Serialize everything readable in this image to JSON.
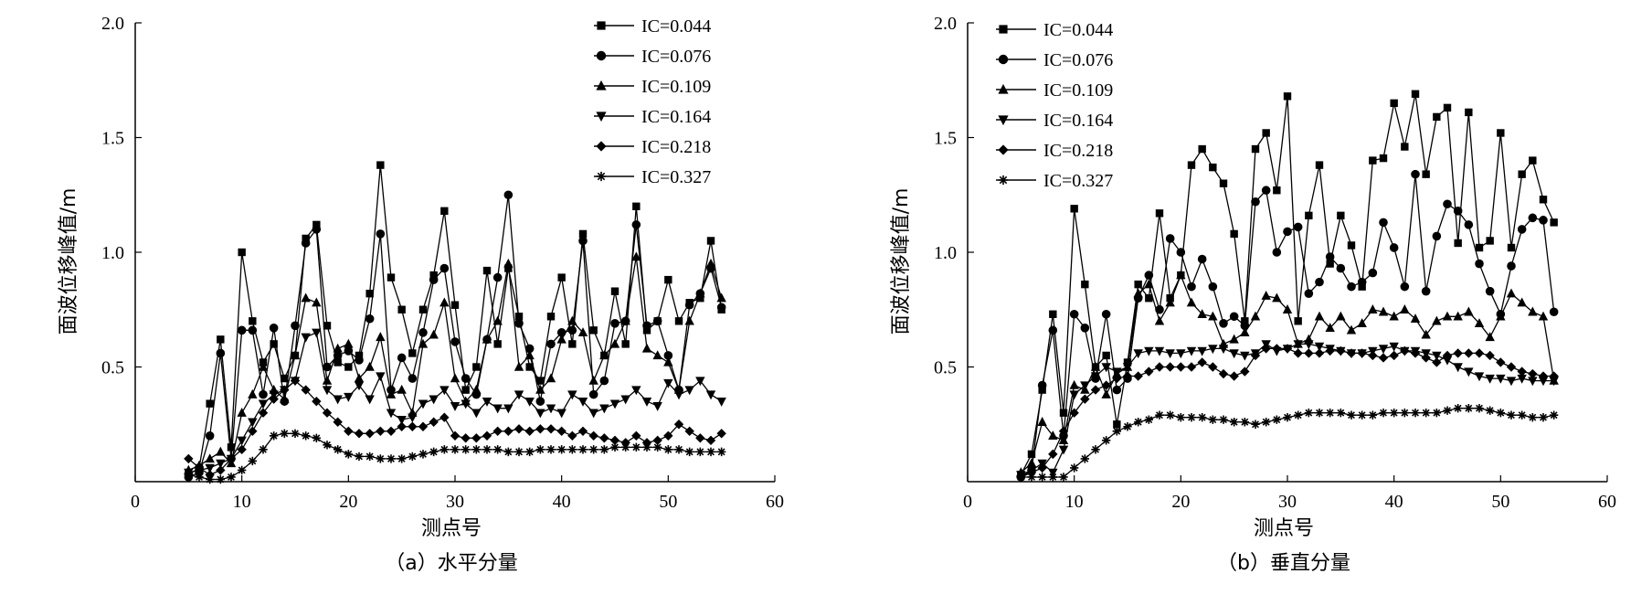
{
  "chart_data": [
    {
      "type": "line",
      "caption": "（a）水平分量",
      "xlabel": "测点号",
      "ylabel": "面波位移峰值/m",
      "xlim": [
        0,
        60
      ],
      "ylim": [
        0,
        2.0
      ],
      "xticks": [
        0,
        10,
        20,
        30,
        40,
        50,
        60
      ],
      "xtick_labels": [
        "0",
        "10",
        "20",
        "30",
        "40",
        "50",
        "60"
      ],
      "yticks": [
        0.5,
        1.0,
        1.5,
        2.0
      ],
      "ytick_labels": [
        "0.5",
        "1.0",
        "1.5",
        "2.0"
      ],
      "grid": false,
      "legend_position": "top-right",
      "x": [
        5,
        6,
        7,
        8,
        9,
        10,
        11,
        12,
        13,
        14,
        15,
        16,
        17,
        18,
        19,
        20,
        21,
        22,
        23,
        24,
        25,
        26,
        27,
        28,
        29,
        30,
        31,
        32,
        33,
        34,
        35,
        36,
        37,
        38,
        39,
        40,
        41,
        42,
        43,
        44,
        45,
        46,
        47,
        48,
        49,
        50,
        51,
        52,
        53,
        54,
        55
      ],
      "series": [
        {
          "name": "IC=0.044",
          "marker": "square",
          "values": [
            0.03,
            0.06,
            0.34,
            0.62,
            0.15,
            1.0,
            0.7,
            0.52,
            0.6,
            0.45,
            0.55,
            1.06,
            1.12,
            0.68,
            0.52,
            0.5,
            0.55,
            0.82,
            1.38,
            0.89,
            0.75,
            0.56,
            0.75,
            0.9,
            1.18,
            0.77,
            0.4,
            0.5,
            0.92,
            0.6,
            0.93,
            0.72,
            0.5,
            0.44,
            0.72,
            0.89,
            0.6,
            1.08,
            0.66,
            0.55,
            0.83,
            0.6,
            1.2,
            0.66,
            0.7,
            0.88,
            0.7,
            0.78,
            0.8,
            1.05,
            0.75
          ]
        },
        {
          "name": "IC=0.076",
          "marker": "circle",
          "values": [
            0.02,
            0.04,
            0.2,
            0.56,
            0.1,
            0.66,
            0.66,
            0.38,
            0.67,
            0.35,
            0.68,
            1.04,
            1.1,
            0.5,
            0.55,
            0.57,
            0.53,
            0.71,
            1.08,
            0.4,
            0.54,
            0.45,
            0.65,
            0.88,
            0.93,
            0.61,
            0.45,
            0.38,
            0.62,
            0.89,
            1.25,
            0.69,
            0.58,
            0.35,
            0.6,
            0.65,
            0.66,
            1.05,
            0.38,
            0.44,
            0.69,
            0.7,
            1.12,
            0.68,
            0.7,
            0.55,
            0.4,
            0.77,
            0.82,
            0.93,
            0.76
          ]
        },
        {
          "name": "IC=0.109",
          "marker": "triangle-up",
          "values": [
            0.05,
            0.07,
            0.1,
            0.13,
            0.08,
            0.3,
            0.38,
            0.5,
            0.4,
            0.36,
            0.55,
            0.8,
            0.78,
            0.44,
            0.58,
            0.6,
            0.45,
            0.5,
            0.63,
            0.38,
            0.4,
            0.3,
            0.6,
            0.64,
            0.78,
            0.45,
            0.35,
            0.4,
            0.62,
            0.7,
            0.95,
            0.5,
            0.55,
            0.4,
            0.45,
            0.62,
            0.7,
            0.65,
            0.44,
            0.55,
            0.6,
            0.7,
            0.98,
            0.58,
            0.55,
            0.52,
            0.4,
            0.7,
            0.82,
            0.95,
            0.8
          ]
        },
        {
          "name": "IC=0.164",
          "marker": "triangle-down",
          "values": [
            0.04,
            0.05,
            0.06,
            0.08,
            0.1,
            0.18,
            0.26,
            0.34,
            0.38,
            0.4,
            0.44,
            0.63,
            0.65,
            0.4,
            0.36,
            0.37,
            0.42,
            0.36,
            0.46,
            0.3,
            0.27,
            0.28,
            0.34,
            0.36,
            0.4,
            0.33,
            0.34,
            0.3,
            0.35,
            0.32,
            0.32,
            0.38,
            0.35,
            0.3,
            0.32,
            0.3,
            0.38,
            0.35,
            0.3,
            0.32,
            0.34,
            0.36,
            0.4,
            0.35,
            0.33,
            0.43,
            0.38,
            0.4,
            0.44,
            0.38,
            0.35
          ]
        },
        {
          "name": "IC=0.218",
          "marker": "diamond",
          "values": [
            0.1,
            0.06,
            0.03,
            0.05,
            0.1,
            0.14,
            0.22,
            0.3,
            0.36,
            0.4,
            0.44,
            0.4,
            0.35,
            0.3,
            0.26,
            0.22,
            0.21,
            0.21,
            0.22,
            0.22,
            0.24,
            0.24,
            0.24,
            0.26,
            0.28,
            0.2,
            0.19,
            0.19,
            0.2,
            0.22,
            0.22,
            0.23,
            0.22,
            0.23,
            0.23,
            0.22,
            0.2,
            0.22,
            0.2,
            0.19,
            0.18,
            0.17,
            0.2,
            0.17,
            0.18,
            0.2,
            0.25,
            0.22,
            0.19,
            0.18,
            0.21
          ]
        },
        {
          "name": "IC=0.327",
          "marker": "asterisk",
          "values": [
            0.03,
            0.02,
            0.01,
            0.01,
            0.02,
            0.05,
            0.09,
            0.14,
            0.2,
            0.21,
            0.21,
            0.2,
            0.19,
            0.16,
            0.14,
            0.12,
            0.11,
            0.11,
            0.1,
            0.1,
            0.1,
            0.11,
            0.12,
            0.13,
            0.14,
            0.14,
            0.14,
            0.14,
            0.14,
            0.14,
            0.13,
            0.13,
            0.13,
            0.14,
            0.14,
            0.14,
            0.14,
            0.14,
            0.14,
            0.14,
            0.15,
            0.15,
            0.15,
            0.15,
            0.15,
            0.14,
            0.14,
            0.13,
            0.13,
            0.13,
            0.13
          ]
        }
      ]
    },
    {
      "type": "line",
      "caption": "（b）垂直分量",
      "xlabel": "测点号",
      "ylabel": "面波位移峰值/m",
      "xlim": [
        0,
        60
      ],
      "ylim": [
        0,
        2.0
      ],
      "xticks": [
        0,
        10,
        20,
        30,
        40,
        50,
        60
      ],
      "xtick_labels": [
        "0",
        "10",
        "20",
        "30",
        "40",
        "50",
        "60"
      ],
      "yticks": [
        0.5,
        1.0,
        1.5,
        2.0
      ],
      "ytick_labels": [
        "0.5",
        "1.0",
        "1.5",
        "2.0"
      ],
      "grid": false,
      "legend_position": "top-left",
      "x": [
        5,
        6,
        7,
        8,
        9,
        10,
        11,
        12,
        13,
        14,
        15,
        16,
        17,
        18,
        19,
        20,
        21,
        22,
        23,
        24,
        25,
        26,
        27,
        28,
        29,
        30,
        31,
        32,
        33,
        34,
        35,
        36,
        37,
        38,
        39,
        40,
        41,
        42,
        43,
        44,
        45,
        46,
        47,
        48,
        49,
        50,
        51,
        52,
        53,
        54,
        55
      ],
      "series": [
        {
          "name": "IC=0.044",
          "marker": "square",
          "values": [
            0.03,
            0.12,
            0.4,
            0.73,
            0.3,
            1.19,
            0.86,
            0.5,
            0.55,
            0.25,
            0.52,
            0.86,
            0.8,
            1.17,
            0.8,
            0.9,
            1.38,
            1.45,
            1.37,
            1.3,
            1.08,
            0.7,
            1.45,
            1.52,
            1.27,
            1.68,
            0.7,
            1.16,
            1.38,
            0.95,
            1.16,
            1.03,
            0.85,
            1.4,
            1.41,
            1.65,
            1.46,
            1.69,
            1.34,
            1.59,
            1.63,
            1.04,
            1.61,
            1.02,
            1.05,
            1.52,
            1.02,
            1.34,
            1.4,
            1.23,
            1.13
          ]
        },
        {
          "name": "IC=0.076",
          "marker": "circle",
          "values": [
            0.02,
            0.05,
            0.42,
            0.66,
            0.2,
            0.73,
            0.67,
            0.45,
            0.73,
            0.4,
            0.45,
            0.8,
            0.9,
            0.75,
            1.06,
            1.0,
            0.85,
            0.97,
            0.85,
            0.69,
            0.72,
            0.68,
            1.22,
            1.27,
            1.0,
            1.09,
            1.11,
            0.82,
            0.87,
            0.98,
            0.93,
            0.85,
            0.87,
            0.91,
            1.13,
            1.02,
            0.85,
            1.34,
            0.83,
            1.07,
            1.21,
            1.18,
            1.12,
            0.95,
            0.83,
            0.73,
            0.94,
            1.1,
            1.15,
            1.14,
            0.74
          ]
        },
        {
          "name": "IC=0.109",
          "marker": "triangle-up",
          "values": [
            0.04,
            0.08,
            0.26,
            0.2,
            0.18,
            0.42,
            0.4,
            0.5,
            0.38,
            0.47,
            0.5,
            0.82,
            0.86,
            0.7,
            0.78,
            0.9,
            0.78,
            0.73,
            0.72,
            0.6,
            0.62,
            0.65,
            0.72,
            0.81,
            0.8,
            0.75,
            0.6,
            0.62,
            0.72,
            0.67,
            0.72,
            0.66,
            0.69,
            0.75,
            0.74,
            0.72,
            0.75,
            0.71,
            0.64,
            0.7,
            0.72,
            0.72,
            0.74,
            0.69,
            0.63,
            0.72,
            0.82,
            0.78,
            0.74,
            0.72,
            0.44
          ]
        },
        {
          "name": "IC=0.164",
          "marker": "triangle-down",
          "values": [
            0.03,
            0.05,
            0.08,
            0.04,
            0.14,
            0.38,
            0.42,
            0.46,
            0.5,
            0.48,
            0.5,
            0.56,
            0.57,
            0.57,
            0.56,
            0.56,
            0.57,
            0.57,
            0.58,
            0.58,
            0.56,
            0.55,
            0.56,
            0.6,
            0.57,
            0.58,
            0.6,
            0.6,
            0.59,
            0.58,
            0.57,
            0.56,
            0.56,
            0.57,
            0.58,
            0.59,
            0.57,
            0.57,
            0.56,
            0.55,
            0.53,
            0.5,
            0.48,
            0.46,
            0.45,
            0.45,
            0.44,
            0.45,
            0.44,
            0.44,
            0.44
          ]
        },
        {
          "name": "IC=0.218",
          "marker": "diamond",
          "values": [
            0.02,
            0.04,
            0.06,
            0.12,
            0.22,
            0.3,
            0.36,
            0.4,
            0.42,
            0.45,
            0.46,
            0.46,
            0.48,
            0.5,
            0.5,
            0.5,
            0.5,
            0.52,
            0.5,
            0.47,
            0.46,
            0.48,
            0.55,
            0.58,
            0.58,
            0.58,
            0.56,
            0.56,
            0.56,
            0.57,
            0.57,
            0.56,
            0.56,
            0.55,
            0.54,
            0.55,
            0.57,
            0.56,
            0.54,
            0.52,
            0.55,
            0.56,
            0.56,
            0.56,
            0.55,
            0.52,
            0.5,
            0.48,
            0.47,
            0.46,
            0.46
          ]
        },
        {
          "name": "IC=0.327",
          "marker": "asterisk",
          "values": [
            0.02,
            0.02,
            0.02,
            0.02,
            0.02,
            0.06,
            0.1,
            0.14,
            0.18,
            0.22,
            0.24,
            0.26,
            0.27,
            0.29,
            0.29,
            0.28,
            0.28,
            0.28,
            0.27,
            0.27,
            0.26,
            0.26,
            0.25,
            0.26,
            0.27,
            0.28,
            0.29,
            0.3,
            0.3,
            0.3,
            0.3,
            0.29,
            0.29,
            0.29,
            0.3,
            0.3,
            0.3,
            0.3,
            0.3,
            0.3,
            0.31,
            0.32,
            0.32,
            0.32,
            0.31,
            0.3,
            0.29,
            0.29,
            0.28,
            0.28,
            0.29
          ]
        }
      ]
    }
  ]
}
